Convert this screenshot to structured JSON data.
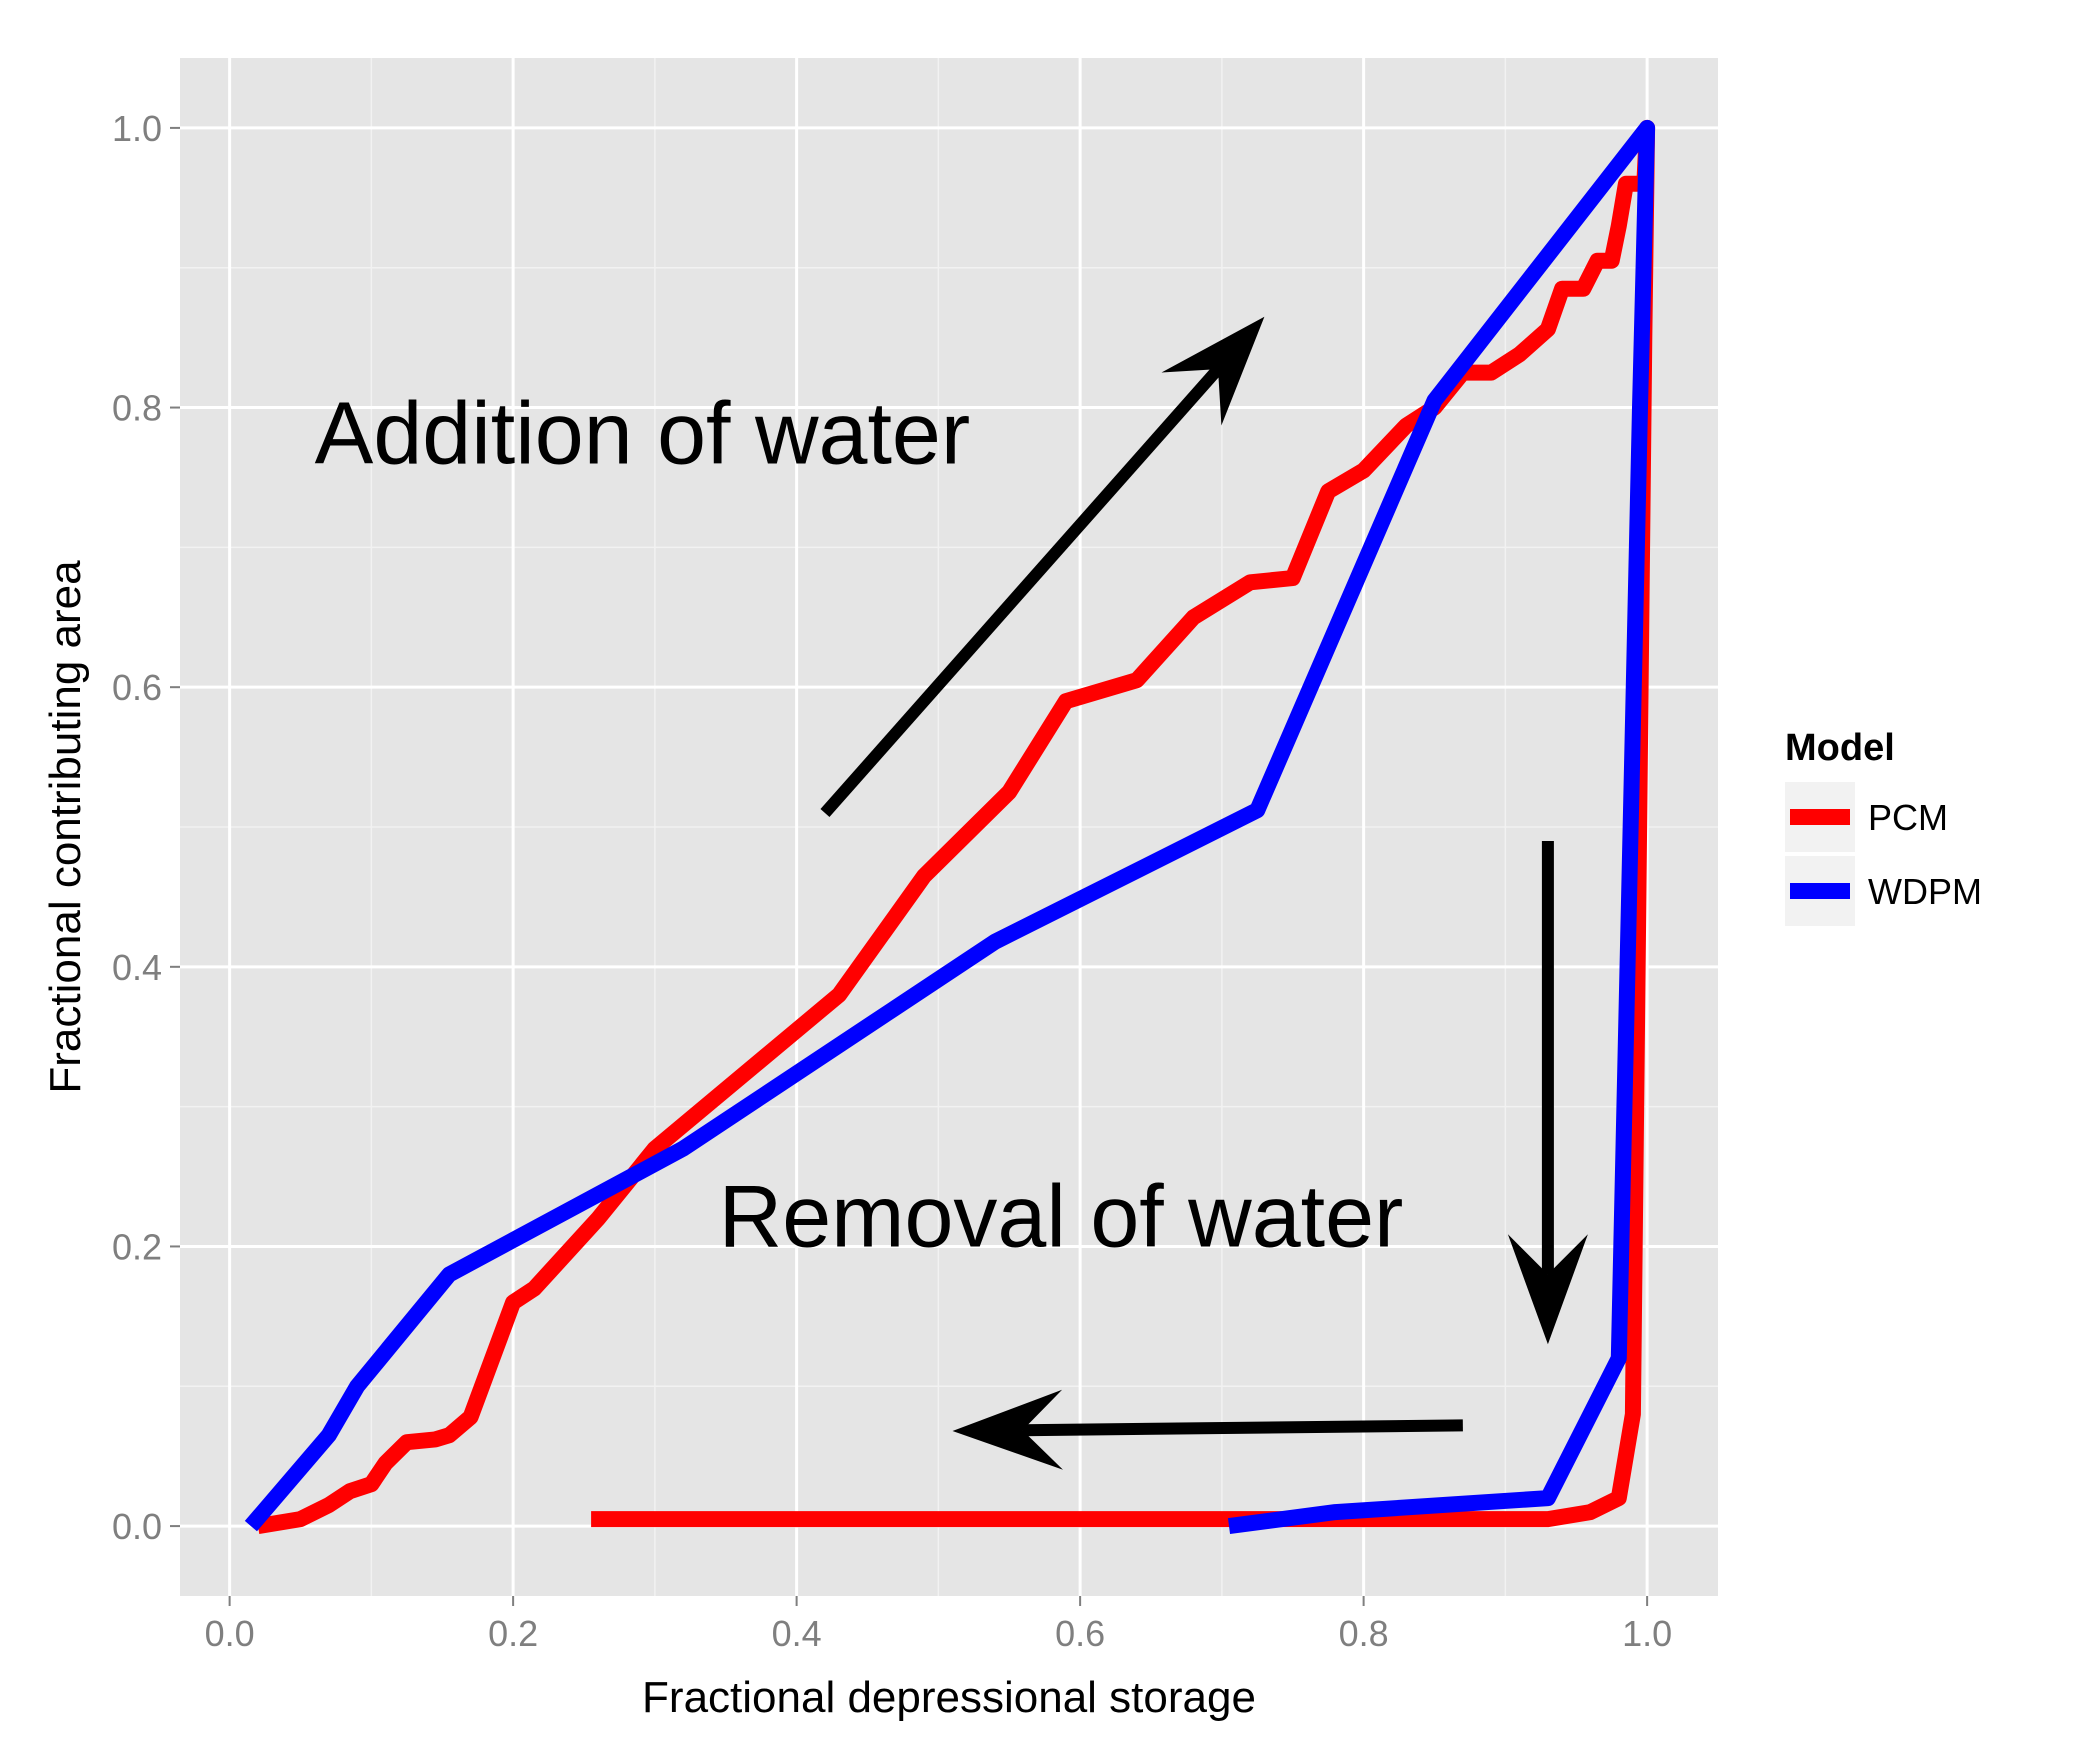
{
  "chart_data": {
    "type": "line",
    "title": "",
    "xlabel": "Fractional depressional storage",
    "ylabel": "Fractional contributing area",
    "xlim": [
      -0.035,
      1.05
    ],
    "ylim": [
      -0.05,
      1.05
    ],
    "x_ticks": [
      0.0,
      0.2,
      0.4,
      0.6,
      0.8,
      1.0
    ],
    "y_ticks": [
      0.0,
      0.2,
      0.4,
      0.6,
      0.8,
      1.0
    ],
    "x_tick_labels": [
      "0.0",
      "0.2",
      "0.4",
      "0.6",
      "0.8",
      "1.0"
    ],
    "y_tick_labels": [
      "0.0",
      "0.2",
      "0.4",
      "0.6",
      "0.8",
      "1.0"
    ],
    "grid": true,
    "legend": {
      "title": "Model",
      "placement": "right",
      "entries": [
        "PCM",
        "WDPM"
      ]
    },
    "series": [
      {
        "name": "PCM",
        "color": "#ff0000",
        "points": [
          [
            0.02,
            0.0
          ],
          [
            0.05,
            0.005
          ],
          [
            0.07,
            0.015
          ],
          [
            0.085,
            0.025
          ],
          [
            0.1,
            0.03
          ],
          [
            0.11,
            0.045
          ],
          [
            0.125,
            0.06
          ],
          [
            0.145,
            0.062
          ],
          [
            0.155,
            0.065
          ],
          [
            0.17,
            0.078
          ],
          [
            0.2,
            0.16
          ],
          [
            0.215,
            0.17
          ],
          [
            0.26,
            0.22
          ],
          [
            0.3,
            0.27
          ],
          [
            0.43,
            0.38
          ],
          [
            0.49,
            0.465
          ],
          [
            0.55,
            0.525
          ],
          [
            0.59,
            0.59
          ],
          [
            0.64,
            0.605
          ],
          [
            0.68,
            0.65
          ],
          [
            0.72,
            0.675
          ],
          [
            0.75,
            0.678
          ],
          [
            0.775,
            0.74
          ],
          [
            0.8,
            0.755
          ],
          [
            0.83,
            0.787
          ],
          [
            0.85,
            0.8
          ],
          [
            0.87,
            0.825
          ],
          [
            0.89,
            0.825
          ],
          [
            0.91,
            0.838
          ],
          [
            0.93,
            0.856
          ],
          [
            0.94,
            0.885
          ],
          [
            0.955,
            0.885
          ],
          [
            0.965,
            0.905
          ],
          [
            0.975,
            0.905
          ],
          [
            0.98,
            0.93
          ],
          [
            0.985,
            0.96
          ],
          [
            0.998,
            0.96
          ],
          [
            1.0,
            1.0
          ],
          [
            0.998,
            0.85
          ],
          [
            0.99,
            0.08
          ],
          [
            0.98,
            0.02
          ],
          [
            0.96,
            0.01
          ],
          [
            0.93,
            0.005
          ],
          [
            0.8,
            0.005
          ],
          [
            0.6,
            0.005
          ],
          [
            0.4,
            0.005
          ],
          [
            0.255,
            0.005
          ]
        ]
      },
      {
        "name": "WDPM",
        "color": "#0000ff",
        "points": [
          [
            0.015,
            0.0
          ],
          [
            0.07,
            0.065
          ],
          [
            0.09,
            0.1
          ],
          [
            0.155,
            0.18
          ],
          [
            0.32,
            0.27
          ],
          [
            0.54,
            0.418
          ],
          [
            0.725,
            0.512
          ],
          [
            0.85,
            0.805
          ],
          [
            1.0,
            1.0
          ],
          [
            0.995,
            0.8
          ],
          [
            0.98,
            0.12
          ],
          [
            0.93,
            0.02
          ],
          [
            0.78,
            0.01
          ],
          [
            0.705,
            0.0
          ]
        ]
      }
    ],
    "annotations": [
      {
        "text": "Addition of water",
        "x": 0.06,
        "y": 0.76
      },
      {
        "text": "Removal of water",
        "x": 0.345,
        "y": 0.2
      }
    ],
    "arrows": [
      {
        "from": [
          0.42,
          0.51
        ],
        "to": [
          0.73,
          0.865
        ]
      },
      {
        "from": [
          0.93,
          0.49
        ],
        "to": [
          0.93,
          0.13
        ]
      },
      {
        "from": [
          0.87,
          0.072
        ],
        "to": [
          0.51,
          0.068
        ]
      }
    ]
  }
}
